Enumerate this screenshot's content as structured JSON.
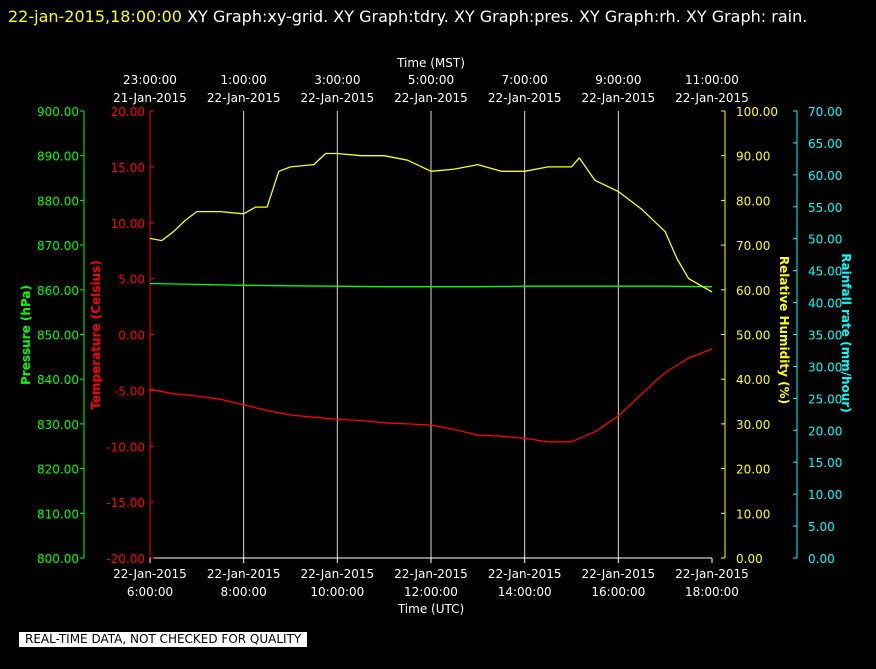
{
  "header": {
    "timestamp": "22-jan-2015,18:00:00",
    "title": "XY Graph:xy-grid.  XY Graph:tdry.  XY Graph:pres.  XY Graph:rh.  XY Graph: rain."
  },
  "footer": {
    "note": "REAL-TIME DATA, NOT CHECKED FOR QUALITY"
  },
  "colors": {
    "background": "#000000",
    "temperature": "#ff0000",
    "pressure": "#00ff00",
    "humidity": "#ffff00",
    "rain": "#00ffff",
    "grid": "#ffffff",
    "axis_text": "#ffffff"
  },
  "chart_data": {
    "type": "line",
    "grid": true,
    "x_top": {
      "label": "Time (MST)",
      "ticks": [
        {
          "time": "23:00:00",
          "date": "21-Jan-2015"
        },
        {
          "time": "1:00:00",
          "date": "22-Jan-2015"
        },
        {
          "time": "3:00:00",
          "date": "22-Jan-2015"
        },
        {
          "time": "5:00:00",
          "date": "22-Jan-2015"
        },
        {
          "time": "7:00:00",
          "date": "22-Jan-2015"
        },
        {
          "time": "9:00:00",
          "date": "22-Jan-2015"
        },
        {
          "time": "11:00:00",
          "date": "22-Jan-2015"
        }
      ]
    },
    "x_bottom": {
      "label": "Time (UTC)",
      "range": [
        "22-Jan-2015 6:00:00",
        "22-Jan-2015 18:00:00"
      ],
      "ticks": [
        {
          "date": "22-Jan-2015",
          "time": "6:00:00"
        },
        {
          "date": "22-Jan-2015",
          "time": "8:00:00"
        },
        {
          "date": "22-Jan-2015",
          "time": "10:00:00"
        },
        {
          "date": "22-Jan-2015",
          "time": "12:00:00"
        },
        {
          "date": "22-Jan-2015",
          "time": "14:00:00"
        },
        {
          "date": "22-Jan-2015",
          "time": "16:00:00"
        },
        {
          "date": "22-Jan-2015",
          "time": "18:00:00"
        }
      ]
    },
    "axes": {
      "pressure": {
        "label": "Pressure (hPa)",
        "range": [
          800,
          900
        ],
        "ticks": [
          "800.00",
          "810.00",
          "820.00",
          "830.00",
          "840.00",
          "850.00",
          "860.00",
          "870.00",
          "880.00",
          "890.00",
          "900.00"
        ]
      },
      "temperature": {
        "label": "Temperature (Celsius)",
        "range": [
          -20,
          20
        ],
        "ticks": [
          "-20.00",
          "-15.00",
          "-10.00",
          "-5.00",
          "0.00",
          "5.00",
          "10.00",
          "15.00",
          "20.00"
        ]
      },
      "humidity": {
        "label": "Relative Humidity (%)",
        "range": [
          0,
          100
        ],
        "ticks": [
          "0.00",
          "10.00",
          "20.00",
          "30.00",
          "40.00",
          "50.00",
          "60.00",
          "70.00",
          "80.00",
          "90.00",
          "100.00"
        ]
      },
      "rain": {
        "label": "Rainfall rate (mm/hour)",
        "range": [
          0,
          70
        ],
        "ticks": [
          "0.00",
          "5.00",
          "10.00",
          "15.00",
          "20.00",
          "25.00",
          "30.00",
          "35.00",
          "40.00",
          "45.00",
          "50.00",
          "55.00",
          "60.00",
          "65.00",
          "70.00"
        ]
      }
    },
    "series": [
      {
        "axis": "temperature",
        "x": [
          "06:00",
          "06:30",
          "07:00",
          "07:30",
          "08:00",
          "08:30",
          "09:00",
          "09:30",
          "10:00",
          "10:30",
          "11:00",
          "11:30",
          "12:00",
          "12:30",
          "13:00",
          "13:30",
          "14:00",
          "14:30",
          "15:00",
          "15:30",
          "16:00",
          "16:30",
          "17:00",
          "17:30",
          "18:00"
        ],
        "values": [
          -4.9,
          -5.3,
          -5.5,
          -5.8,
          -6.3,
          -6.8,
          -7.2,
          -7.4,
          -7.6,
          -7.7,
          -7.9,
          -8.0,
          -8.1,
          -8.5,
          -9.0,
          -9.1,
          -9.3,
          -9.6,
          -9.6,
          -8.7,
          -7.3,
          -5.3,
          -3.4,
          -2.1,
          -1.3
        ]
      },
      {
        "axis": "pressure",
        "x": [
          "06:00",
          "07:00",
          "08:00",
          "09:00",
          "10:00",
          "11:00",
          "12:00",
          "13:00",
          "14:00",
          "15:00",
          "16:00",
          "17:00",
          "18:00"
        ],
        "values": [
          861.4,
          861.2,
          861.0,
          860.9,
          860.8,
          860.7,
          860.7,
          860.7,
          860.8,
          860.8,
          860.8,
          860.8,
          860.7
        ]
      },
      {
        "axis": "humidity",
        "x": [
          "06:00",
          "06:15",
          "06:30",
          "06:45",
          "07:00",
          "07:30",
          "08:00",
          "08:15",
          "08:30",
          "08:45",
          "09:00",
          "09:30",
          "09:45",
          "10:00",
          "10:30",
          "11:00",
          "11:30",
          "12:00",
          "12:30",
          "13:00",
          "13:30",
          "14:00",
          "14:30",
          "15:00",
          "15:10",
          "15:30",
          "16:00",
          "16:30",
          "17:00",
          "17:15",
          "17:30",
          "18:00"
        ],
        "values": [
          71.5,
          71.0,
          73.0,
          75.5,
          77.5,
          77.5,
          77.0,
          78.5,
          78.5,
          86.5,
          87.5,
          88.0,
          90.5,
          90.5,
          90.0,
          90.0,
          89.0,
          86.5,
          87.0,
          88.0,
          86.5,
          86.5,
          87.5,
          87.5,
          89.5,
          84.5,
          82.0,
          78.0,
          73.0,
          67.0,
          62.5,
          59.5
        ]
      },
      {
        "axis": "rain",
        "x": [],
        "values": []
      }
    ]
  }
}
